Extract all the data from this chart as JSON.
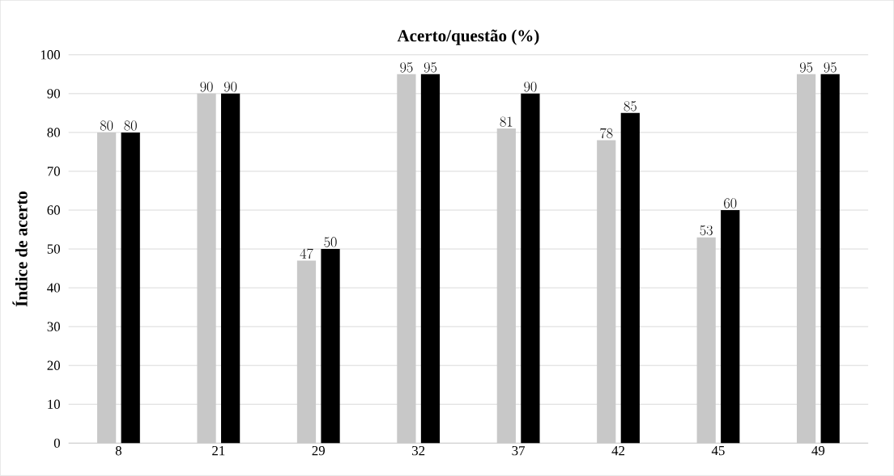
{
  "chart_data": {
    "type": "bar",
    "title": "Acerto/questão (%)",
    "ylabel": "Índice de acerto",
    "categories": [
      "8",
      "21",
      "29",
      "32",
      "37",
      "42",
      "45",
      "49"
    ],
    "series": [
      {
        "color": "#c8c8c8",
        "values": [
          80,
          90,
          47,
          95,
          81,
          78,
          53,
          95
        ]
      },
      {
        "color": "#000000",
        "values": [
          80,
          90,
          50,
          95,
          90,
          85,
          60,
          95
        ]
      }
    ],
    "ylim": [
      0,
      100
    ],
    "yticks": [
      0,
      10,
      20,
      30,
      40,
      50,
      60,
      70,
      80,
      90,
      100
    ],
    "grid": "y",
    "data_labels": true
  }
}
